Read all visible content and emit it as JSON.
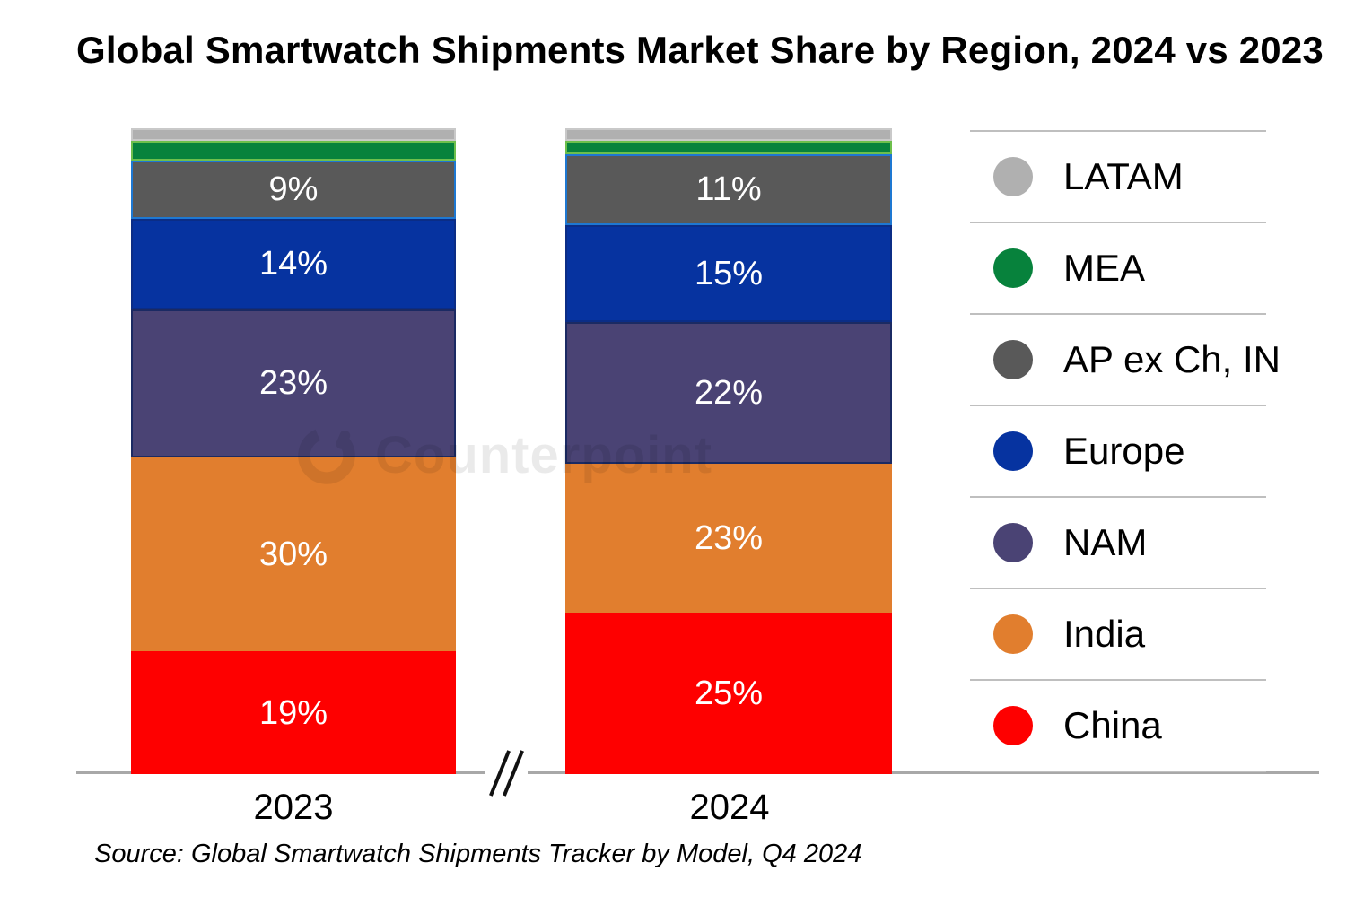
{
  "title": "Global Smartwatch Shipments Market Share by Region, 2024 vs 2023",
  "source": "Source: Global Smartwatch Shipments Tracker by Model, Q4 2024",
  "watermark": "Counterpoint",
  "axis_break_symbol": "//",
  "chart_data": {
    "type": "bar",
    "stacked": true,
    "unit": "percent market share",
    "value_suffix": "%",
    "label_min_value": 9,
    "ylim": [
      0,
      100
    ],
    "grid": false,
    "legend_position": "right",
    "legend_order_top_to_bottom": [
      "LATAM",
      "MEA",
      "AP ex Ch, IN",
      "Europe",
      "NAM",
      "India",
      "China"
    ],
    "categories": [
      "2023",
      "2024"
    ],
    "series": [
      {
        "name": "China",
        "color": "#fe0000",
        "border": "#fe0000",
        "values": [
          19,
          25
        ]
      },
      {
        "name": "India",
        "color": "#e17e2e",
        "border": "#e17e2e",
        "values": [
          30,
          23
        ]
      },
      {
        "name": "NAM",
        "color": "#4a4374",
        "border": "#1b2a63",
        "values": [
          23,
          22
        ]
      },
      {
        "name": "Europe",
        "color": "#0633a0",
        "border": "#0b2d86",
        "values": [
          14,
          15
        ]
      },
      {
        "name": "AP ex Ch, IN",
        "color": "#595959",
        "border": "#1e78d2",
        "values": [
          9,
          11
        ]
      },
      {
        "name": "MEA",
        "color": "#07823c",
        "border": "#6dbf4c",
        "values": [
          3,
          2
        ]
      },
      {
        "name": "LATAM",
        "color": "#b0b0b0",
        "border": "#c9c9c9",
        "values": [
          2,
          2
        ]
      }
    ]
  }
}
